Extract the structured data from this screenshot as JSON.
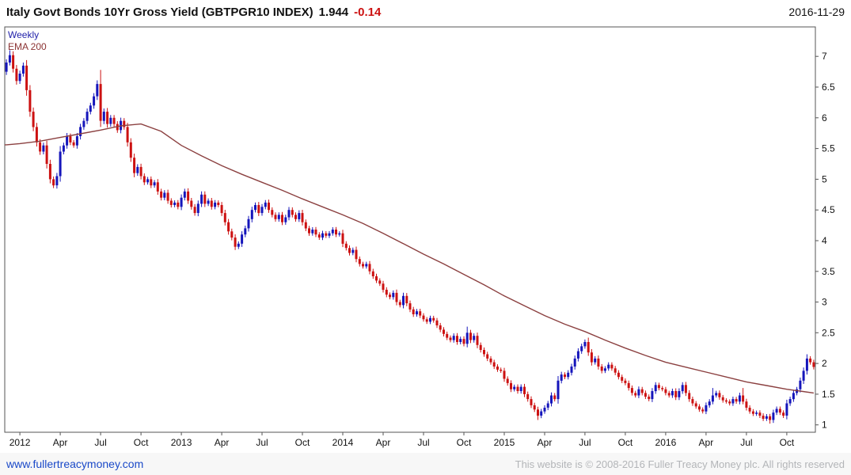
{
  "header": {
    "title": "Italy Govt Bonds 10Yr Gross Yield (GBTPGR10 INDEX)",
    "last_value": "1.944",
    "change": "-0.14",
    "date": "2016-11-29"
  },
  "footer": {
    "link": "www.fullertreacymoney.com",
    "copyright": "This website is © 2008-2016 Fuller Treacy Money plc. All rights reserved"
  },
  "chart_data": {
    "type": "candlestick",
    "series_name": "Italy Govt Bonds 10Yr Gross Yield (GBTPGR10 INDEX)",
    "timeframe_label": "Weekly",
    "overlay_label": "EMA 200",
    "ylim": [
      0.88,
      7.48
    ],
    "y_ticks": [
      1,
      1.5,
      2,
      2.5,
      3,
      3.5,
      4,
      4.5,
      5,
      5.5,
      6,
      6.5,
      7
    ],
    "x_ticks": [
      {
        "label": "2012",
        "i": 4
      },
      {
        "label": "Apr",
        "i": 16
      },
      {
        "label": "Jul",
        "i": 28
      },
      {
        "label": "Oct",
        "i": 40
      },
      {
        "label": "2013",
        "i": 52
      },
      {
        "label": "Apr",
        "i": 64
      },
      {
        "label": "Jul",
        "i": 76
      },
      {
        "label": "Oct",
        "i": 88
      },
      {
        "label": "2014",
        "i": 100
      },
      {
        "label": "Apr",
        "i": 112
      },
      {
        "label": "Jul",
        "i": 124
      },
      {
        "label": "Oct",
        "i": 136
      },
      {
        "label": "2015",
        "i": 148
      },
      {
        "label": "Apr",
        "i": 160
      },
      {
        "label": "Jul",
        "i": 172
      },
      {
        "label": "Oct",
        "i": 184
      },
      {
        "label": "2016",
        "i": 196
      },
      {
        "label": "Apr",
        "i": 208
      },
      {
        "label": "Jul",
        "i": 220
      },
      {
        "label": "Oct",
        "i": 232
      }
    ],
    "first_open": 6.75,
    "closes": [
      6.9,
      7.02,
      6.8,
      6.6,
      6.72,
      6.85,
      6.45,
      6.1,
      5.85,
      5.6,
      5.45,
      5.55,
      5.25,
      5.0,
      4.9,
      5.05,
      5.45,
      5.55,
      5.7,
      5.6,
      5.55,
      5.7,
      5.85,
      5.95,
      6.1,
      6.2,
      6.35,
      6.55,
      5.95,
      6.1,
      5.9,
      6.0,
      5.9,
      5.8,
      5.95,
      5.85,
      5.6,
      5.35,
      5.1,
      5.2,
      5.05,
      4.95,
      5.0,
      4.9,
      4.95,
      4.8,
      4.7,
      4.78,
      4.65,
      4.58,
      4.62,
      4.55,
      4.7,
      4.8,
      4.65,
      4.55,
      4.45,
      4.6,
      4.75,
      4.6,
      4.65,
      4.55,
      4.62,
      4.58,
      4.45,
      4.3,
      4.15,
      4.05,
      3.9,
      3.95,
      4.1,
      4.2,
      4.35,
      4.5,
      4.58,
      4.45,
      4.55,
      4.62,
      4.5,
      4.42,
      4.35,
      4.42,
      4.3,
      4.38,
      4.5,
      4.42,
      4.35,
      4.45,
      4.3,
      4.2,
      4.12,
      4.18,
      4.1,
      4.05,
      4.12,
      4.08,
      4.12,
      4.18,
      4.1,
      4.12,
      3.95,
      3.88,
      3.8,
      3.85,
      3.7,
      3.62,
      3.58,
      3.62,
      3.5,
      3.42,
      3.35,
      3.3,
      3.2,
      3.12,
      3.08,
      3.15,
      3.0,
      2.95,
      3.1,
      2.98,
      2.88,
      2.8,
      2.85,
      2.78,
      2.72,
      2.68,
      2.74,
      2.7,
      2.62,
      2.55,
      2.48,
      2.42,
      2.38,
      2.45,
      2.35,
      2.4,
      2.32,
      2.5,
      2.38,
      2.45,
      2.3,
      2.22,
      2.15,
      2.08,
      2.02,
      1.95,
      1.9,
      1.88,
      1.75,
      1.68,
      1.58,
      1.62,
      1.55,
      1.62,
      1.5,
      1.42,
      1.32,
      1.25,
      1.15,
      1.22,
      1.28,
      1.35,
      1.48,
      1.42,
      1.72,
      1.82,
      1.78,
      1.85,
      1.95,
      2.08,
      2.2,
      2.28,
      2.35,
      2.18,
      2.02,
      2.08,
      1.95,
      1.88,
      1.92,
      1.98,
      1.92,
      1.85,
      1.78,
      1.72,
      1.68,
      1.6,
      1.52,
      1.48,
      1.58,
      1.52,
      1.46,
      1.42,
      1.55,
      1.65,
      1.6,
      1.58,
      1.52,
      1.48,
      1.55,
      1.45,
      1.55,
      1.65,
      1.52,
      1.42,
      1.35,
      1.3,
      1.25,
      1.22,
      1.32,
      1.38,
      1.48,
      1.52,
      1.45,
      1.4,
      1.38,
      1.35,
      1.42,
      1.38,
      1.48,
      1.38,
      1.28,
      1.22,
      1.18,
      1.2,
      1.15,
      1.1,
      1.14,
      1.08,
      1.2,
      1.26,
      1.2,
      1.15,
      1.35,
      1.42,
      1.52,
      1.58,
      1.72,
      1.88,
      2.08,
      2.02,
      1.944
    ],
    "high_overrides": {
      "1": 7.1,
      "28": 6.78,
      "137": 2.6,
      "173": 2.42,
      "210": 1.6,
      "219": 1.6,
      "238": 2.15
    },
    "low_overrides": {
      "158": 1.08,
      "227": 1.02
    },
    "ema200": [
      [
        0,
        5.56
      ],
      [
        4,
        5.58
      ],
      [
        10,
        5.62
      ],
      [
        16,
        5.68
      ],
      [
        22,
        5.74
      ],
      [
        28,
        5.8
      ],
      [
        34,
        5.87
      ],
      [
        40,
        5.9
      ],
      [
        46,
        5.78
      ],
      [
        52,
        5.55
      ],
      [
        58,
        5.38
      ],
      [
        64,
        5.22
      ],
      [
        70,
        5.08
      ],
      [
        76,
        4.95
      ],
      [
        82,
        4.82
      ],
      [
        88,
        4.68
      ],
      [
        94,
        4.55
      ],
      [
        100,
        4.42
      ],
      [
        106,
        4.28
      ],
      [
        112,
        4.12
      ],
      [
        118,
        3.95
      ],
      [
        124,
        3.78
      ],
      [
        130,
        3.62
      ],
      [
        136,
        3.45
      ],
      [
        142,
        3.28
      ],
      [
        148,
        3.1
      ],
      [
        154,
        2.94
      ],
      [
        160,
        2.78
      ],
      [
        166,
        2.64
      ],
      [
        172,
        2.52
      ],
      [
        178,
        2.38
      ],
      [
        184,
        2.25
      ],
      [
        190,
        2.13
      ],
      [
        196,
        2.02
      ],
      [
        202,
        1.94
      ],
      [
        208,
        1.86
      ],
      [
        214,
        1.78
      ],
      [
        220,
        1.7
      ],
      [
        226,
        1.64
      ],
      [
        232,
        1.58
      ],
      [
        240,
        1.52
      ]
    ],
    "colors": {
      "up": "#1515bb",
      "down": "#cc1111",
      "ema": "#8b4040",
      "change_negative": "#cc1111",
      "timeframe_label": "#2222aa",
      "ema_label": "#8b3333",
      "link": "#1a49c8",
      "copyright": "#b3b5b8"
    }
  }
}
